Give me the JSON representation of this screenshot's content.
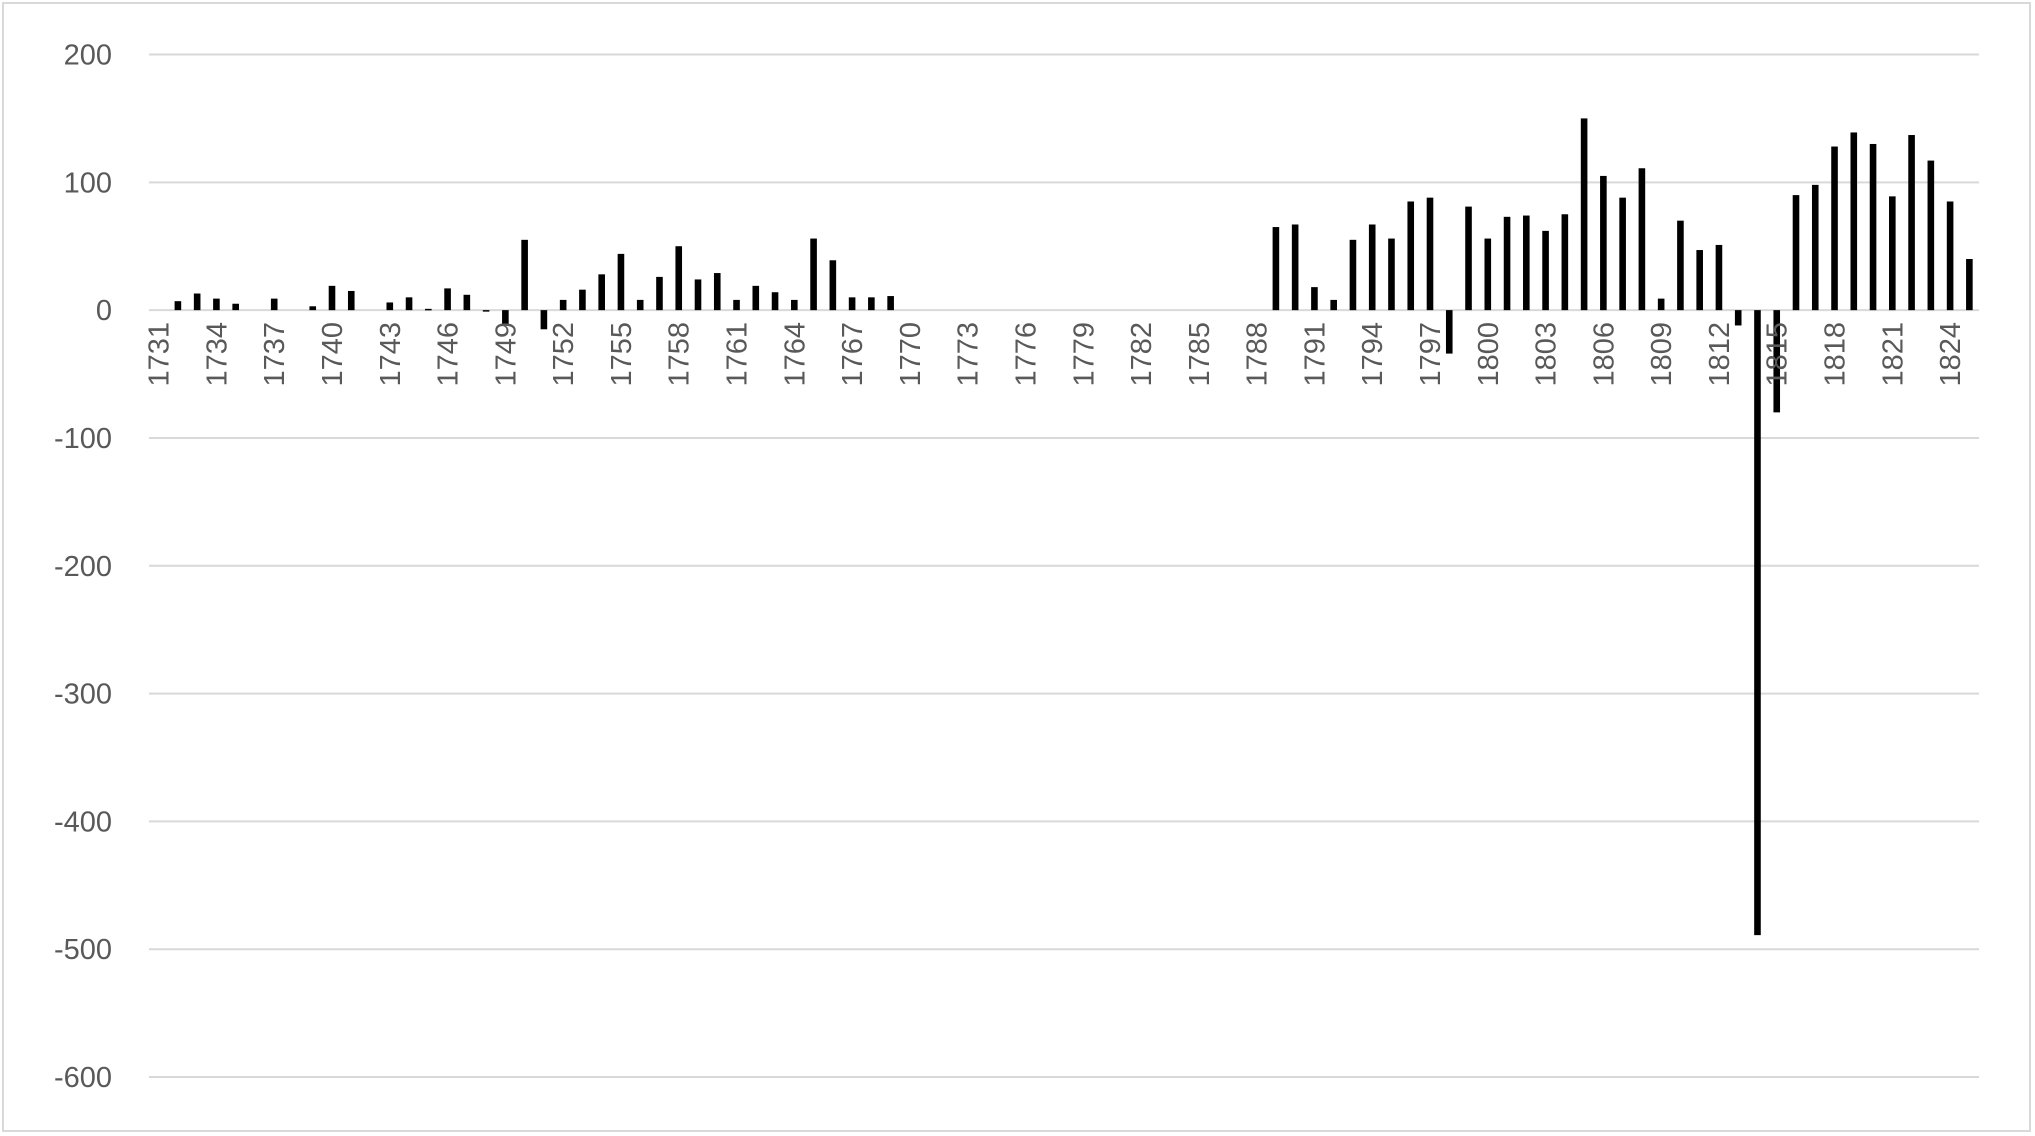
{
  "chart_data": {
    "type": "bar",
    "title": "",
    "xlabel": "",
    "ylabel": "",
    "ylim": [
      -600,
      200
    ],
    "yticks": [
      200,
      100,
      0,
      -100,
      -200,
      -300,
      -400,
      -500,
      -600
    ],
    "grid": true,
    "legend": "none",
    "bar_color": "#000000",
    "grid_color": "#d9d9d9",
    "categories": [
      1731,
      1732,
      1733,
      1734,
      1735,
      1736,
      1737,
      1738,
      1739,
      1740,
      1741,
      1742,
      1743,
      1744,
      1745,
      1746,
      1747,
      1748,
      1749,
      1750,
      1751,
      1752,
      1753,
      1754,
      1755,
      1756,
      1757,
      1758,
      1759,
      1760,
      1761,
      1762,
      1763,
      1764,
      1765,
      1766,
      1767,
      1768,
      1769,
      1770,
      1771,
      1772,
      1773,
      1774,
      1775,
      1776,
      1777,
      1778,
      1779,
      1780,
      1781,
      1782,
      1783,
      1784,
      1785,
      1786,
      1787,
      1788,
      1789,
      1790,
      1791,
      1792,
      1793,
      1794,
      1795,
      1796,
      1797,
      1798,
      1799,
      1800,
      1801,
      1802,
      1803,
      1804,
      1805,
      1806,
      1807,
      1808,
      1809,
      1810,
      1811,
      1812,
      1813,
      1814,
      1815,
      1816,
      1817,
      1818,
      1819,
      1820,
      1821,
      1822,
      1823,
      1824,
      1825
    ],
    "xtick_labels": [
      "1731",
      "1734",
      "1737",
      "1740",
      "1743",
      "1746",
      "1749",
      "1752",
      "1755",
      "1758",
      "1761",
      "1764",
      "1767",
      "1770",
      "1773",
      "1776",
      "1779",
      "1782",
      "1785",
      "1788",
      "1791",
      "1794",
      "1797",
      "1800",
      "1803",
      "1806",
      "1809",
      "1812",
      "1815",
      "1818",
      "1821",
      "1824"
    ],
    "values": [
      null,
      7,
      13,
      9,
      5,
      null,
      9,
      null,
      3,
      19,
      15,
      null,
      6,
      10,
      1,
      17,
      12,
      -1,
      -11,
      55,
      -15,
      8,
      16,
      28,
      44,
      8,
      26,
      50,
      24,
      29,
      8,
      19,
      14,
      8,
      56,
      39,
      10,
      10,
      11,
      null,
      null,
      null,
      null,
      null,
      null,
      null,
      null,
      null,
      null,
      null,
      null,
      null,
      null,
      null,
      null,
      null,
      null,
      null,
      65,
      67,
      18,
      8,
      55,
      67,
      56,
      85,
      88,
      -34,
      81,
      56,
      73,
      74,
      62,
      75,
      150,
      105,
      88,
      111,
      9,
      70,
      47,
      51,
      -12,
      -489,
      -80,
      90,
      98,
      128,
      139,
      130,
      89,
      137,
      117,
      85,
      40
    ]
  }
}
